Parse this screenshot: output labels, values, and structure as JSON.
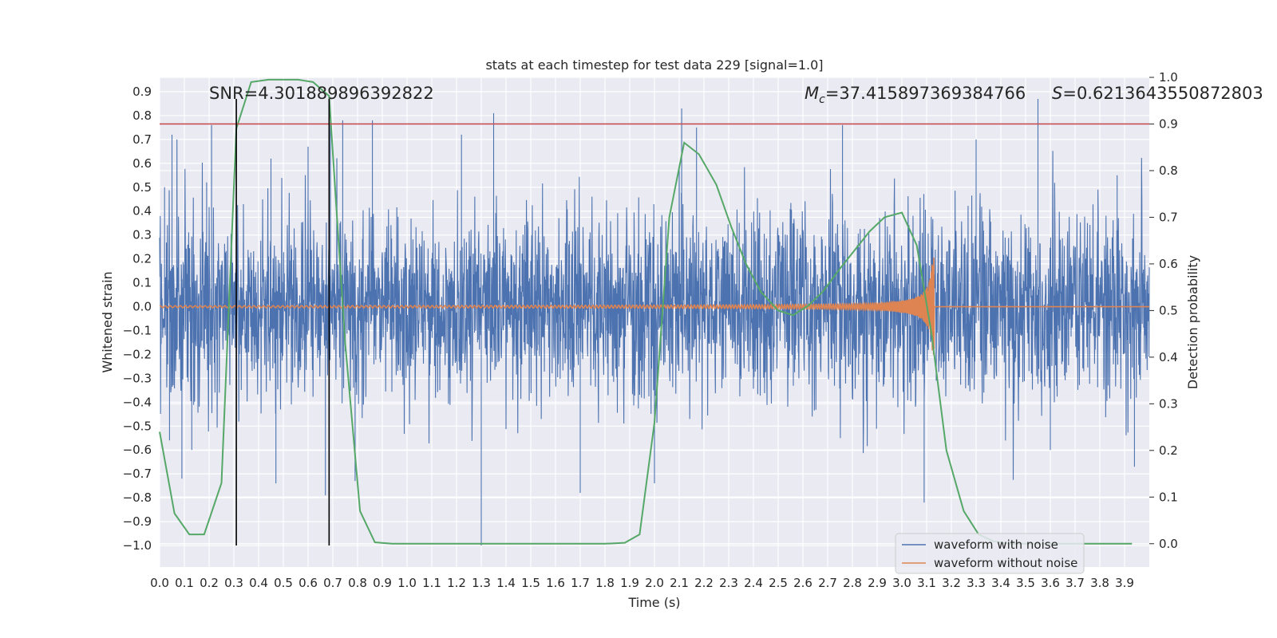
{
  "chart_data": {
    "type": "line",
    "title": "stats at each timestep for test data 229 [signal=1.0]",
    "xlabel": "Time (s)",
    "ylabel": "Whitened strain",
    "ylabel_right": "Detection probability",
    "xlim": [
      0.0,
      4.0
    ],
    "ylim": [
      -1.09,
      0.96
    ],
    "ylim_right": [
      -0.05,
      1.0
    ],
    "x_ticks": [
      "0.0",
      "0.1",
      "0.2",
      "0.3",
      "0.4",
      "0.5",
      "0.6",
      "0.7",
      "0.8",
      "0.9",
      "1.0",
      "1.1",
      "1.2",
      "1.3",
      "1.4",
      "1.5",
      "1.6",
      "1.7",
      "1.8",
      "1.9",
      "2.0",
      "2.1",
      "2.2",
      "2.3",
      "2.4",
      "2.5",
      "2.6",
      "2.7",
      "2.8",
      "2.9",
      "3.0",
      "3.1",
      "3.2",
      "3.3",
      "3.4",
      "3.5",
      "3.6",
      "3.7",
      "3.8",
      "3.9"
    ],
    "y_ticks": [
      "0.9",
      "0.8",
      "0.7",
      "0.6",
      "0.5",
      "0.4",
      "0.3",
      "0.2",
      "0.1",
      "0.0",
      "−0.1",
      "−0.2",
      "−0.3",
      "−0.4",
      "−0.5",
      "−0.6",
      "−0.7",
      "−0.8",
      "−0.9",
      "−1.0"
    ],
    "y_tick_values": [
      0.9,
      0.8,
      0.7,
      0.6,
      0.5,
      0.4,
      0.3,
      0.2,
      0.1,
      0.0,
      -0.1,
      -0.2,
      -0.3,
      -0.4,
      -0.5,
      -0.6,
      -0.7,
      -0.8,
      -0.9,
      -1.0
    ],
    "y_right_ticks": [
      "1.0",
      "0.9",
      "0.8",
      "0.7",
      "0.6",
      "0.5",
      "0.4",
      "0.3",
      "0.2",
      "0.1",
      "0.0"
    ],
    "y_right_tick_values": [
      1.0,
      0.9,
      0.8,
      0.7,
      0.6,
      0.5,
      0.4,
      0.3,
      0.2,
      0.1,
      0.0
    ],
    "grid": true,
    "legend_placement": "lower-right",
    "annotations": {
      "snr": "SNR=4.301889896392822",
      "mc_symbol": "M",
      "mc_sub": "c",
      "mc_value": "=37.415897369384766",
      "s_symbol": "S",
      "s_value": "=0.6213643550872803"
    },
    "vertical_lines_x": [
      0.31,
      0.685
    ],
    "vertical_lines_ylim": [
      -1.0,
      0.87
    ],
    "threshold_right_axis": 0.9,
    "noise_amplitude_peaks": [
      [
        0.02,
        0.5
      ],
      [
        0.05,
        0.72
      ],
      [
        0.19,
        0.52
      ],
      [
        0.21,
        0.76
      ],
      [
        0.45,
        0.62
      ],
      [
        0.6,
        0.67
      ],
      [
        0.69,
        0.77
      ],
      [
        0.74,
        0.78
      ],
      [
        0.86,
        0.78
      ],
      [
        1.22,
        0.72
      ],
      [
        1.35,
        0.81
      ],
      [
        2.11,
        0.83
      ],
      [
        2.17,
        0.75
      ],
      [
        2.76,
        0.76
      ],
      [
        3.3,
        0.7
      ],
      [
        3.55,
        0.87
      ],
      [
        3.87,
        0.55
      ],
      [
        0.04,
        -0.56
      ],
      [
        0.09,
        -0.72
      ],
      [
        0.13,
        -0.6
      ],
      [
        0.47,
        -0.74
      ],
      [
        0.67,
        -0.79
      ],
      [
        0.79,
        -0.73
      ],
      [
        1.3,
        -1.0
      ],
      [
        1.7,
        -0.78
      ],
      [
        2.0,
        -0.74
      ],
      [
        3.09,
        -0.82
      ],
      [
        3.6,
        -0.6
      ],
      [
        3.94,
        -0.67
      ]
    ],
    "series": [
      {
        "name": "waveform with noise",
        "axis": "left",
        "color": "#4c72b0",
        "description_values": "dense Gaussian noise, t from 0.0 to 4.0 s, typical |y| up to ~0.5, occasional spikes to ~0.87 and ~-1.0"
      },
      {
        "name": "waveform without noise",
        "axis": "left",
        "color": "#dd8452",
        "chirp": {
          "t_merger": 3.115,
          "amp_start": 0.004,
          "amp_peak": 0.25,
          "t_end": 4.0
        }
      },
      {
        "name": "",
        "axis": "right",
        "color": "#55a868",
        "x": [
          0.0,
          0.06,
          0.12,
          0.18,
          0.25,
          0.31,
          0.37,
          0.44,
          0.5,
          0.56,
          0.62,
          0.685,
          0.75,
          0.81,
          0.87,
          0.94,
          1.0,
          1.1,
          1.2,
          1.3,
          1.4,
          1.5,
          1.6,
          1.7,
          1.8,
          1.88,
          1.94,
          2.0,
          2.06,
          2.12,
          2.18,
          2.25,
          2.31,
          2.37,
          2.43,
          2.5,
          2.56,
          2.62,
          2.68,
          2.75,
          2.81,
          2.87,
          2.93,
          3.0,
          3.06,
          3.12,
          3.18,
          3.25,
          3.31,
          3.37,
          3.43,
          3.5,
          3.56,
          3.62,
          3.68,
          3.75,
          3.81,
          3.87,
          3.93
        ],
        "values": [
          0.24,
          0.065,
          0.02,
          0.02,
          0.13,
          0.89,
          0.99,
          0.995,
          0.995,
          0.995,
          0.99,
          0.96,
          0.43,
          0.07,
          0.003,
          0.0,
          0.0,
          0.0,
          0.0,
          0.0,
          0.0,
          0.0,
          0.0,
          0.0,
          0.0,
          0.002,
          0.02,
          0.26,
          0.7,
          0.86,
          0.835,
          0.77,
          0.68,
          0.6,
          0.54,
          0.5,
          0.49,
          0.51,
          0.54,
          0.59,
          0.63,
          0.67,
          0.7,
          0.71,
          0.64,
          0.45,
          0.2,
          0.07,
          0.02,
          0.005,
          0.0,
          0.0,
          0.0,
          0.0,
          0.0,
          0.0,
          0.0,
          0.0,
          0.0
        ]
      }
    ],
    "colors": {
      "plot_bg": "#eaeaf2",
      "grid": "#ffffff",
      "noise": "#4c72b0",
      "clean": "#dd8452",
      "probability": "#55a868",
      "threshold": "#c44e52",
      "vline": "#000000",
      "text": "#262626"
    }
  },
  "legend": [
    {
      "label": "waveform with noise",
      "color": "#4c72b0"
    },
    {
      "label": "waveform without noise",
      "color": "#dd8452"
    }
  ]
}
